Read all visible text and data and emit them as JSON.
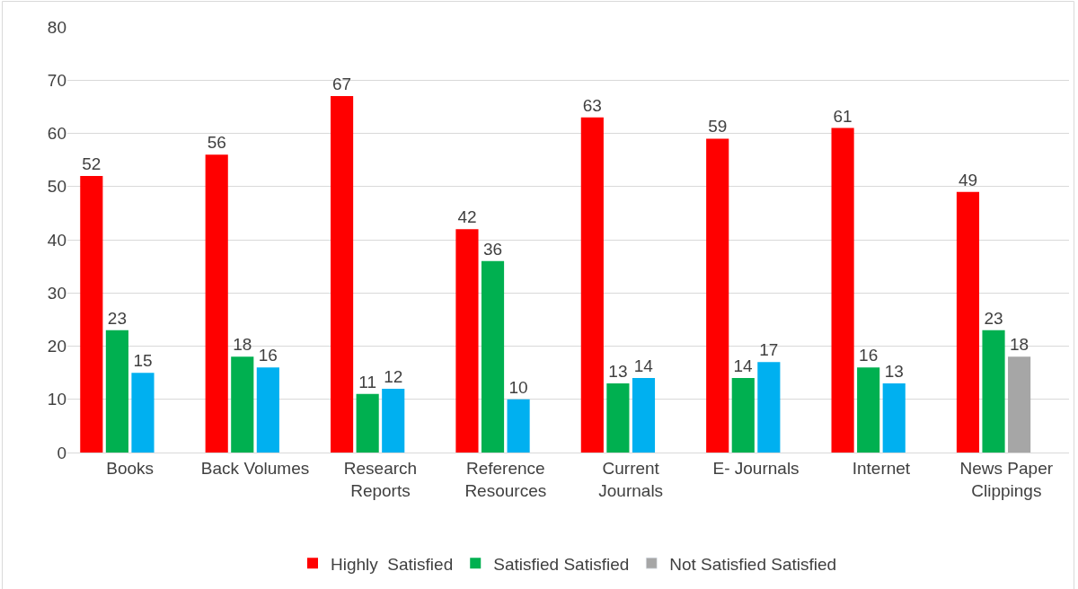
{
  "chart_data": {
    "type": "bar",
    "categories": [
      "Books",
      "Back Volumes",
      "Research Reports",
      "Reference Resources",
      "Current Journals",
      "E- Journals",
      "Internet",
      "News Paper Clippings"
    ],
    "series": [
      {
        "name": "Highly  Satisfied",
        "color": "#ff0000",
        "values": [
          52,
          56,
          67,
          42,
          63,
          59,
          61,
          49
        ]
      },
      {
        "name": "Satisfied Satisfied",
        "color": "#00b050",
        "values": [
          23,
          18,
          11,
          36,
          13,
          14,
          16,
          23
        ]
      },
      {
        "name": "Not Satisfied Satisfied",
        "color": "#a6a6a6",
        "colors": [
          "#00b0f0",
          "#00b0f0",
          "#00b0f0",
          "#00b0f0",
          "#00b0f0",
          "#00b0f0",
          "#00b0f0",
          "#a6a6a6"
        ],
        "values": [
          15,
          16,
          12,
          10,
          14,
          17,
          13,
          18
        ]
      }
    ],
    "ylim": [
      0,
      80
    ],
    "yticks": [
      0,
      10,
      20,
      30,
      40,
      50,
      60,
      70,
      80
    ],
    "grid": "y",
    "legend": "bottom",
    "data_labels": true
  }
}
